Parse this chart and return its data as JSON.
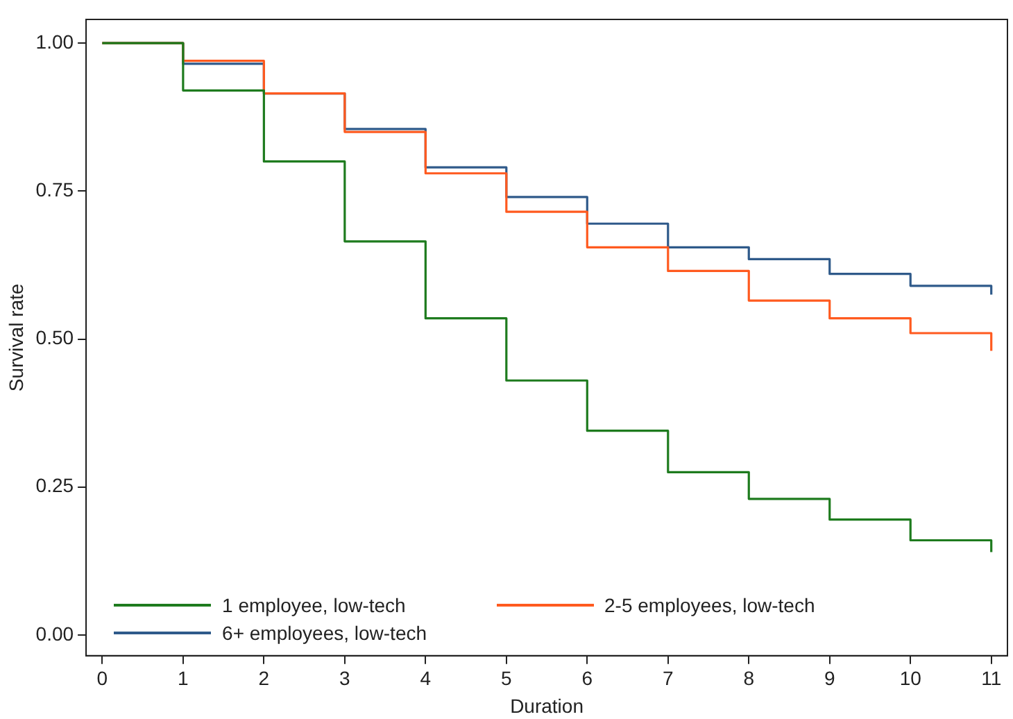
{
  "chart_data": {
    "type": "step",
    "xlabel": "Duration",
    "ylabel": "Survival rate",
    "x": [
      0,
      1,
      2,
      3,
      4,
      5,
      6,
      7,
      8,
      9,
      10,
      11
    ],
    "series": [
      {
        "name": "1 employee, low-tech",
        "color": "#1e7b1e",
        "values": [
          1,
          0.92,
          0.8,
          0.665,
          0.535,
          0.43,
          0.345,
          0.275,
          0.23,
          0.195,
          0.16,
          0.14
        ]
      },
      {
        "name": "2-5 employees, low-tech",
        "color": "#ff5a1f",
        "values": [
          1,
          0.97,
          0.915,
          0.85,
          0.78,
          0.715,
          0.655,
          0.615,
          0.565,
          0.535,
          0.51,
          0.48
        ]
      },
      {
        "name": "6+ employees, low-tech",
        "color": "#2f5a8a",
        "values": [
          1,
          0.965,
          0.915,
          0.855,
          0.79,
          0.74,
          0.695,
          0.655,
          0.635,
          0.61,
          0.59,
          0.575
        ]
      }
    ],
    "xlim": [
      -0.2,
      11.2
    ],
    "xticks": [
      0,
      1,
      2,
      3,
      4,
      5,
      6,
      7,
      8,
      9,
      10,
      11
    ],
    "ylim": [
      -0.035,
      1.04
    ],
    "yticks": [
      {
        "value": 0,
        "label": "0.00"
      },
      {
        "value": 0.25,
        "label": "0.25"
      },
      {
        "value": 0.5,
        "label": "0.50"
      },
      {
        "value": 0.75,
        "label": "0.75"
      },
      {
        "value": 1,
        "label": "1.00"
      }
    ],
    "grid": false,
    "legend": "bottom",
    "marker": "none",
    "line_style": "solid"
  }
}
